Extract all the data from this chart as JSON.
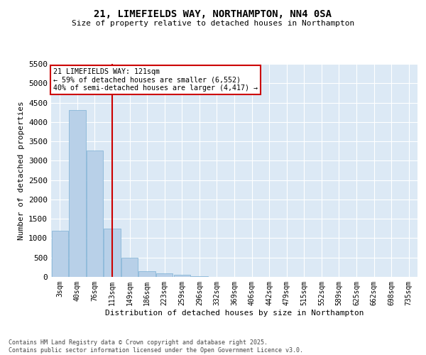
{
  "title1": "21, LIMEFIELDS WAY, NORTHAMPTON, NN4 0SA",
  "title2": "Size of property relative to detached houses in Northampton",
  "xlabel": "Distribution of detached houses by size in Northampton",
  "ylabel": "Number of detached properties",
  "annotation_title": "21 LIMEFIELDS WAY: 121sqm",
  "annotation_line1": "← 59% of detached houses are smaller (6,552)",
  "annotation_line2": "40% of semi-detached houses are larger (4,417) →",
  "footer1": "Contains HM Land Registry data © Crown copyright and database right 2025.",
  "footer2": "Contains public sector information licensed under the Open Government Licence v3.0.",
  "categories": [
    "3sqm",
    "40sqm",
    "76sqm",
    "113sqm",
    "149sqm",
    "186sqm",
    "223sqm",
    "259sqm",
    "296sqm",
    "332sqm",
    "369sqm",
    "406sqm",
    "442sqm",
    "479sqm",
    "515sqm",
    "552sqm",
    "589sqm",
    "625sqm",
    "662sqm",
    "698sqm",
    "735sqm"
  ],
  "bar_values": [
    1200,
    4300,
    3270,
    1240,
    490,
    155,
    100,
    55,
    10,
    0,
    0,
    0,
    0,
    0,
    0,
    0,
    0,
    0,
    0,
    0,
    0
  ],
  "bar_color": "#b8d0e8",
  "bar_edge_color": "#7aafd4",
  "vline_color": "#cc0000",
  "vline_x": 3,
  "annotation_box_color": "#cc0000",
  "background_color": "#dce9f5",
  "grid_color": "#ffffff",
  "ylim": [
    0,
    5500
  ],
  "yticks": [
    0,
    500,
    1000,
    1500,
    2000,
    2500,
    3000,
    3500,
    4000,
    4500,
    5000,
    5500
  ]
}
